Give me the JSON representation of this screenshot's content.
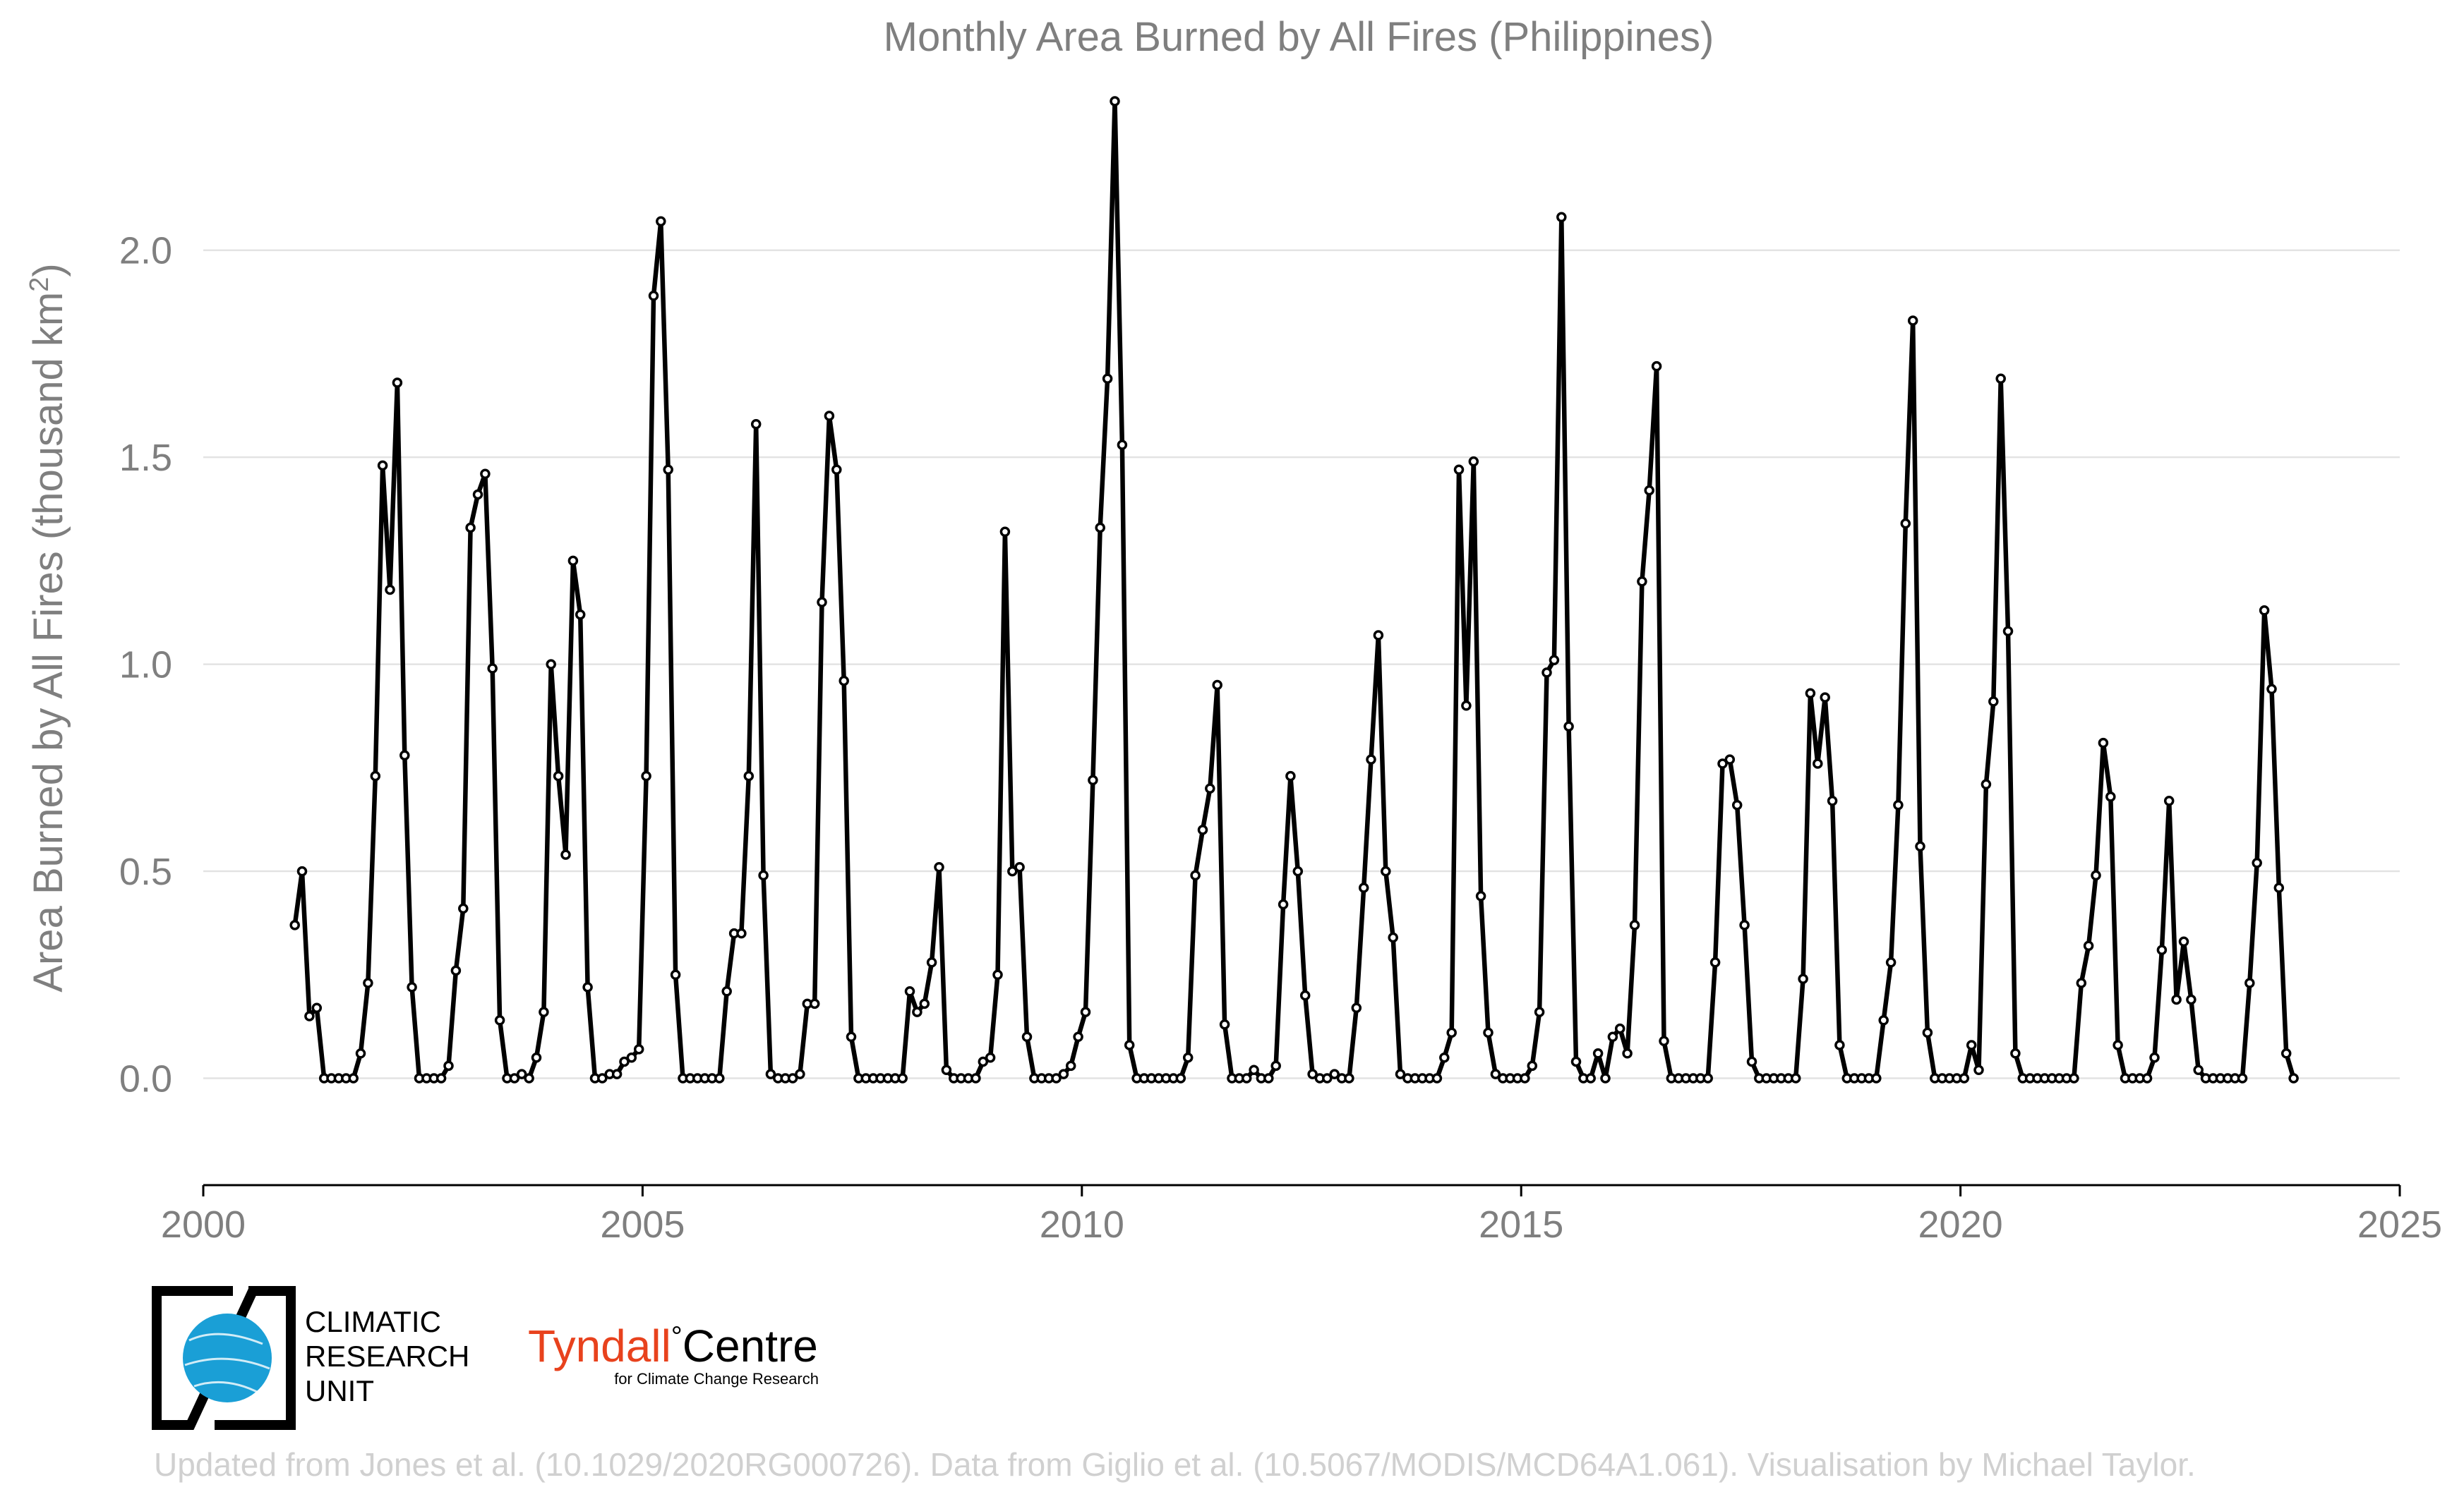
{
  "chart_data": {
    "type": "line",
    "title": "Monthly Area Burned by All Fires (Philippines)",
    "ylabel": "Area Burned by All Fires (thousand km",
    "ylabel_superscript": "2",
    "ylabel_close": ")",
    "xlim": [
      2000,
      2025
    ],
    "ylim": [
      -0.19,
      2.4
    ],
    "x_ticks": [
      "2000",
      "2005",
      "2010",
      "2015",
      "2020",
      "2025"
    ],
    "y_ticks": [
      "0.0",
      "0.5",
      "1.0",
      "1.5",
      "2.0"
    ],
    "grid": true,
    "start": "2001-01",
    "series": [
      {
        "values": [
          0.37,
          0.5,
          0.15,
          0.17,
          0.0,
          0.0,
          0.0,
          0.0,
          0.0,
          0.06,
          0.23,
          0.73,
          1.48,
          1.18,
          1.68,
          0.78,
          0.22,
          0.0,
          0.0,
          0.0,
          0.0,
          0.03,
          0.26,
          0.41,
          1.33,
          1.41,
          1.46,
          0.99,
          0.14,
          0.0,
          0.0,
          0.01,
          0.0,
          0.05,
          0.16,
          1.0,
          0.73,
          0.54,
          1.25,
          1.12,
          0.22,
          0.0,
          0.0,
          0.01,
          0.01,
          0.04,
          0.05,
          0.07,
          0.73,
          1.89,
          2.07,
          1.47,
          0.25,
          0.0,
          0.0,
          0.0,
          0.0,
          0.0,
          0.0,
          0.21,
          0.35,
          0.35,
          0.73,
          1.58,
          0.49,
          0.01,
          0.0,
          0.0,
          0.0,
          0.01,
          0.18,
          0.18,
          1.15,
          1.6,
          1.47,
          0.96,
          0.1,
          0.0,
          0.0,
          0.0,
          0.0,
          0.0,
          0.0,
          0.0,
          0.21,
          0.16,
          0.18,
          0.28,
          0.51,
          0.02,
          0.0,
          0.0,
          0.0,
          0.0,
          0.04,
          0.05,
          0.25,
          1.32,
          0.5,
          0.51,
          0.1,
          0.0,
          0.0,
          0.0,
          0.0,
          0.01,
          0.03,
          0.1,
          0.16,
          0.72,
          1.33,
          1.69,
          2.36,
          1.53,
          0.08,
          0.0,
          0.0,
          0.0,
          0.0,
          0.0,
          0.0,
          0.0,
          0.05,
          0.49,
          0.6,
          0.7,
          0.95,
          0.13,
          0.0,
          0.0,
          0.0,
          0.02,
          0.0,
          0.0,
          0.03,
          0.42,
          0.73,
          0.5,
          0.2,
          0.01,
          0.0,
          0.0,
          0.01,
          0.0,
          0.0,
          0.17,
          0.46,
          0.77,
          1.07,
          0.5,
          0.34,
          0.01,
          0.0,
          0.0,
          0.0,
          0.0,
          0.0,
          0.05,
          0.11,
          1.47,
          0.9,
          1.49,
          0.44,
          0.11,
          0.01,
          0.0,
          0.0,
          0.0,
          0.0,
          0.03,
          0.16,
          0.98,
          1.01,
          2.08,
          0.85,
          0.04,
          0.0,
          0.0,
          0.06,
          0.0,
          0.1,
          0.12,
          0.06,
          0.37,
          1.2,
          1.42,
          1.72,
          0.09,
          0.0,
          0.0,
          0.0,
          0.0,
          0.0,
          0.0,
          0.28,
          0.76,
          0.77,
          0.66,
          0.37,
          0.04,
          0.0,
          0.0,
          0.0,
          0.0,
          0.0,
          0.0,
          0.24,
          0.93,
          0.76,
          0.92,
          0.67,
          0.08,
          0.0,
          0.0,
          0.0,
          0.0,
          0.0,
          0.14,
          0.28,
          0.66,
          1.34,
          1.83,
          0.56,
          0.11,
          0.0,
          0.0,
          0.0,
          0.0,
          0.0,
          0.08,
          0.02,
          0.71,
          0.91,
          1.69,
          1.08,
          0.06,
          0.0,
          0.0,
          0.0,
          0.0,
          0.0,
          0.0,
          0.0,
          0.0,
          0.23,
          0.32,
          0.49,
          0.81,
          0.68,
          0.08,
          0.0,
          0.0,
          0.0,
          0.0,
          0.05,
          0.31,
          0.67,
          0.19,
          0.33,
          0.19,
          0.02,
          0.0,
          0.0,
          0.0,
          0.0,
          0.0,
          0.0,
          0.23,
          0.52,
          1.13,
          0.94,
          0.46,
          0.06,
          0.0
        ]
      }
    ]
  },
  "logos": {
    "cru_line1": "CLIMATIC",
    "cru_line2": "RESEARCH",
    "cru_line3": "UNIT",
    "tyndall_name": "Tyndall",
    "tyndall_degree": "°",
    "tyndall_centre": "Centre",
    "tyndall_sub": "for Climate Change Research",
    "tyndall_red": "#e8421d",
    "cru_blue": "#1a9fd6"
  },
  "footer": {
    "credit": "Updated from Jones et al. (10.1029/2020RG000726). Data from Giglio et al. (10.5067/MODIS/MCD64A1.061). Visualisation by Michael Taylor."
  }
}
